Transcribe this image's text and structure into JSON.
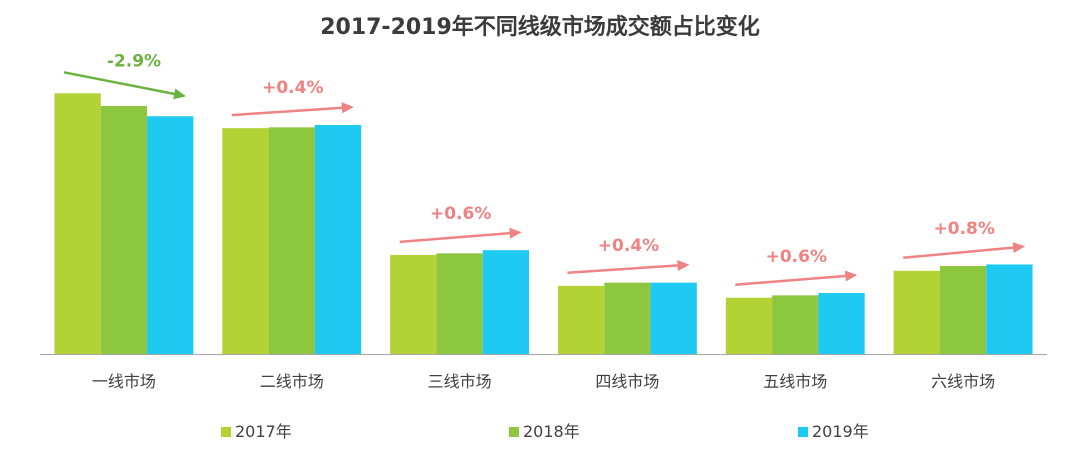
{
  "chart_data": {
    "type": "bar",
    "title": "2017-2019年不同线级市场成交额占比变化",
    "categories": [
      "一线市场",
      "二线市场",
      "三线市场",
      "四线市场",
      "五线市场",
      "六线市场"
    ],
    "series": [
      {
        "name": "2017年",
        "color": "#b2d235",
        "values": [
          32.9,
          28.5,
          12.5,
          8.6,
          7.1,
          10.5
        ]
      },
      {
        "name": "2018年",
        "color": "#8dc63f",
        "values": [
          31.3,
          28.6,
          12.7,
          9.0,
          7.4,
          11.1
        ]
      },
      {
        "name": "2019年",
        "color": "#1ec9f2",
        "values": [
          30.0,
          28.9,
          13.1,
          9.0,
          7.7,
          11.3
        ]
      }
    ],
    "ylim": [
      0,
      40
    ],
    "grid": false,
    "legend": "bottom",
    "annotations": [
      {
        "category": "一线市场",
        "text": "-2.9%",
        "color": "#6ab33e"
      },
      {
        "category": "二线市场",
        "text": "+0.4%",
        "color": "#ef8383"
      },
      {
        "category": "三线市场",
        "text": "+0.6%",
        "color": "#ef8383"
      },
      {
        "category": "四线市场",
        "text": "+0.4%",
        "color": "#ef8383"
      },
      {
        "category": "五线市场",
        "text": "+0.6%",
        "color": "#ef8383"
      },
      {
        "category": "六线市场",
        "text": "+0.8%",
        "color": "#ef8383"
      }
    ]
  }
}
